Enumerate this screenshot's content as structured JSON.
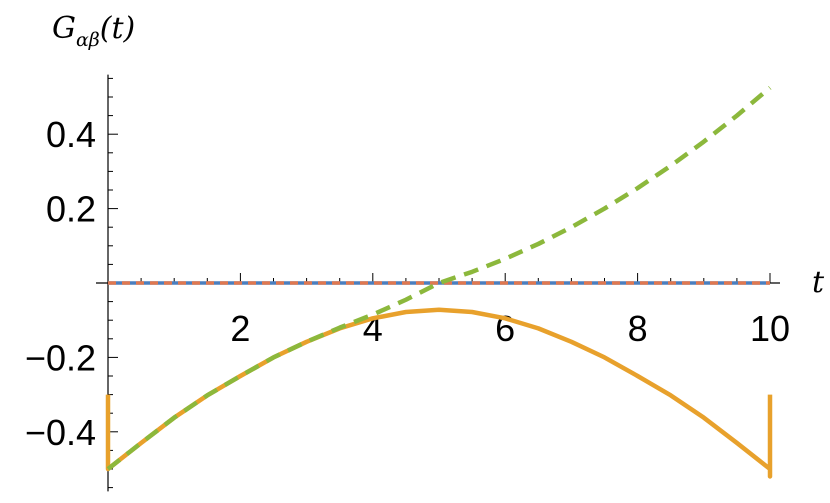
{
  "chart_data": {
    "type": "line",
    "ylabel": "G",
    "ylabel_subscript": "αβ",
    "ylabel_arg": "(t)",
    "xlabel": "t",
    "xlim": [
      0,
      10
    ],
    "ylim": [
      -0.56,
      0.56
    ],
    "x_ticks": [
      2,
      4,
      6,
      8,
      10
    ],
    "x_tick_labels": [
      "2",
      "4",
      "6",
      "8",
      "10"
    ],
    "y_ticks": [
      -0.4,
      -0.2,
      0.2,
      0.4
    ],
    "y_tick_labels": [
      "−0.4",
      "−0.2",
      "0.2",
      "0.4"
    ],
    "grid": false,
    "series": [
      {
        "style": "solid",
        "color": "#4a7fbf",
        "x": [
          0,
          10
        ],
        "y": [
          0,
          0
        ]
      },
      {
        "style": "dashed",
        "color": "#e07850",
        "x": [
          0,
          10
        ],
        "y": [
          0,
          0
        ]
      },
      {
        "style": "solid",
        "color": "#e8a12c",
        "x": [
          0,
          0,
          0.5,
          1,
          1.5,
          2,
          2.5,
          3,
          3.5,
          4,
          4.5,
          5,
          5.5,
          6,
          6.5,
          7,
          7.5,
          8,
          8.5,
          9,
          9.5,
          10,
          10,
          10
        ],
        "y": [
          -0.3,
          -0.5,
          -0.43,
          -0.362,
          -0.302,
          -0.25,
          -0.2,
          -0.158,
          -0.122,
          -0.095,
          -0.078,
          -0.072,
          -0.078,
          -0.095,
          -0.122,
          -0.158,
          -0.2,
          -0.25,
          -0.302,
          -0.362,
          -0.43,
          -0.5,
          -0.52,
          -0.3
        ]
      },
      {
        "style": "dashed",
        "color": "#8cb83c",
        "x": [
          0,
          0.5,
          1,
          1.5,
          2,
          2.5,
          3,
          3.5,
          4,
          4.5,
          5,
          5.5,
          6,
          6.5,
          7,
          7.5,
          8,
          8.5,
          9,
          9.5,
          10
        ],
        "y": [
          -0.5,
          -0.43,
          -0.362,
          -0.302,
          -0.25,
          -0.2,
          -0.158,
          -0.12,
          -0.085,
          -0.045,
          0.0,
          0.03,
          0.065,
          0.105,
          0.15,
          0.2,
          0.255,
          0.315,
          0.38,
          0.45,
          0.525
        ]
      }
    ]
  }
}
